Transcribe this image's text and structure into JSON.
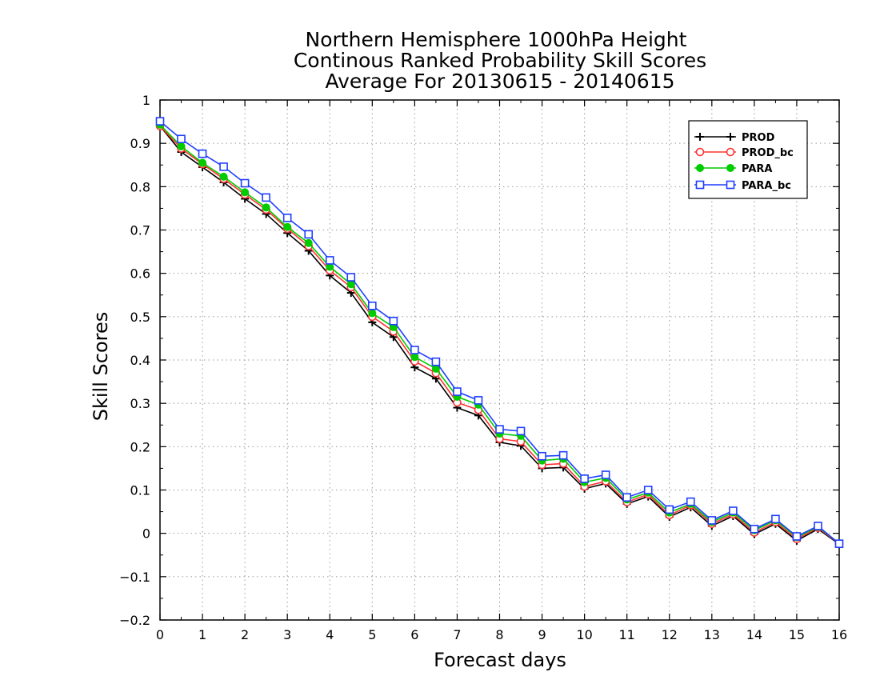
{
  "chart_data": {
    "type": "line",
    "title_lines": [
      "Northern Hemisphere 1000hPa Height",
      "Continous Ranked Probability Skill Scores",
      "Average For 20130615 - 20140615"
    ],
    "xlabel": "Forecast days",
    "ylabel": "Skill Scores",
    "xlim": [
      0,
      16
    ],
    "ylim": [
      -0.2,
      1
    ],
    "x_ticks": [
      0,
      1,
      2,
      3,
      4,
      5,
      6,
      7,
      8,
      9,
      10,
      11,
      12,
      13,
      14,
      15,
      16
    ],
    "x_tick_labels": [
      "0",
      "1",
      "2",
      "3",
      "4",
      "5",
      "6",
      "7",
      "8",
      "9",
      "10",
      "11",
      "12",
      "13",
      "14",
      "15",
      "16"
    ],
    "y_ticks": [
      -0.2,
      -0.1,
      0,
      0.1,
      0.2,
      0.3,
      0.4,
      0.5,
      0.6,
      0.7,
      0.8,
      0.9,
      1
    ],
    "y_tick_labels": [
      "−0.2",
      "−0.1",
      "0",
      "0.1",
      "0.2",
      "0.3",
      "0.4",
      "0.5",
      "0.6",
      "0.7",
      "0.8",
      "0.9",
      "1"
    ],
    "grid": true,
    "legend_position": "top-right",
    "x": [
      0,
      0.5,
      1,
      1.5,
      2,
      2.5,
      3,
      3.5,
      4,
      4.5,
      5,
      5.5,
      6,
      6.5,
      7,
      7.5,
      8,
      8.5,
      9,
      9.5,
      10,
      10.5,
      11,
      11.5,
      12,
      12.5,
      13,
      13.5,
      14,
      14.5,
      15,
      15.5,
      16
    ],
    "series": [
      {
        "name": "PROD",
        "color": "#000000",
        "marker": "plus",
        "values": [
          0.94,
          0.88,
          0.845,
          0.81,
          0.772,
          0.737,
          0.693,
          0.652,
          0.595,
          0.555,
          0.487,
          0.453,
          0.383,
          0.357,
          0.29,
          0.272,
          0.21,
          0.202,
          0.15,
          0.152,
          0.103,
          0.115,
          0.068,
          0.085,
          0.038,
          0.06,
          0.017,
          0.04,
          -0.002,
          0.022,
          -0.017,
          0.01,
          -0.025
        ]
      },
      {
        "name": "PROD_bc",
        "color": "#ff3333",
        "marker": "open-circle",
        "values": [
          0.94,
          0.888,
          0.852,
          0.818,
          0.782,
          0.747,
          0.703,
          0.663,
          0.607,
          0.568,
          0.5,
          0.466,
          0.397,
          0.37,
          0.302,
          0.285,
          0.218,
          0.212,
          0.158,
          0.161,
          0.108,
          0.12,
          0.072,
          0.09,
          0.042,
          0.065,
          0.022,
          0.044,
          0.002,
          0.026,
          -0.013,
          0.013,
          -0.024
        ]
      },
      {
        "name": "PARA",
        "color": "#00cc00",
        "marker": "filled-circle",
        "values": [
          0.943,
          0.893,
          0.855,
          0.823,
          0.787,
          0.752,
          0.707,
          0.67,
          0.615,
          0.575,
          0.508,
          0.476,
          0.407,
          0.38,
          0.315,
          0.297,
          0.23,
          0.225,
          0.168,
          0.172,
          0.118,
          0.128,
          0.078,
          0.094,
          0.048,
          0.068,
          0.026,
          0.048,
          0.007,
          0.03,
          -0.009,
          0.015,
          -0.023
        ]
      },
      {
        "name": "PARA_bc",
        "color": "#1f3fff",
        "marker": "open-square",
        "values": [
          0.951,
          0.91,
          0.876,
          0.846,
          0.808,
          0.775,
          0.728,
          0.69,
          0.63,
          0.591,
          0.525,
          0.49,
          0.423,
          0.396,
          0.327,
          0.307,
          0.24,
          0.236,
          0.178,
          0.18,
          0.126,
          0.135,
          0.083,
          0.1,
          0.055,
          0.073,
          0.03,
          0.052,
          0.01,
          0.033,
          -0.007,
          0.017,
          -0.024
        ]
      }
    ]
  }
}
